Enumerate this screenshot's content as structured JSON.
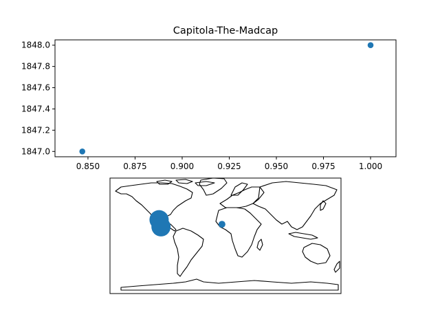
{
  "colors": {
    "marker": "#1f77b4",
    "axes": "#000000",
    "background": "#ffffff"
  },
  "chart_data": [
    {
      "type": "scatter",
      "title": "Capitola-The-Madcap",
      "xlabel": "",
      "ylabel": "",
      "xlim": [
        0.8325,
        1.0135
      ],
      "ylim": [
        1846.95,
        1848.05
      ],
      "grid": false,
      "x_ticks": [
        "0.850",
        "0.875",
        "0.900",
        "0.925",
        "0.950",
        "0.975",
        "1.000"
      ],
      "y_ticks": [
        "1847.0",
        "1847.2",
        "1847.4",
        "1847.6",
        "1847.8",
        "1848.0"
      ],
      "points": [
        {
          "x": 0.847,
          "y": 1847.0
        },
        {
          "x": 1.0,
          "y": 1848.0
        }
      ]
    },
    {
      "type": "scatter",
      "subtype": "world-map-bubbles",
      "title": "",
      "projection": "plate-carree",
      "lon_range": [
        -180,
        180
      ],
      "lat_range": [
        -90,
        90
      ],
      "points": [
        {
          "lon": -103.5,
          "lat": 25.0,
          "relative_size": "large"
        },
        {
          "lon": -100.5,
          "lat": 14.0,
          "relative_size": "large"
        },
        {
          "lon": -5.5,
          "lat": 18.0,
          "relative_size": "small"
        }
      ]
    }
  ]
}
